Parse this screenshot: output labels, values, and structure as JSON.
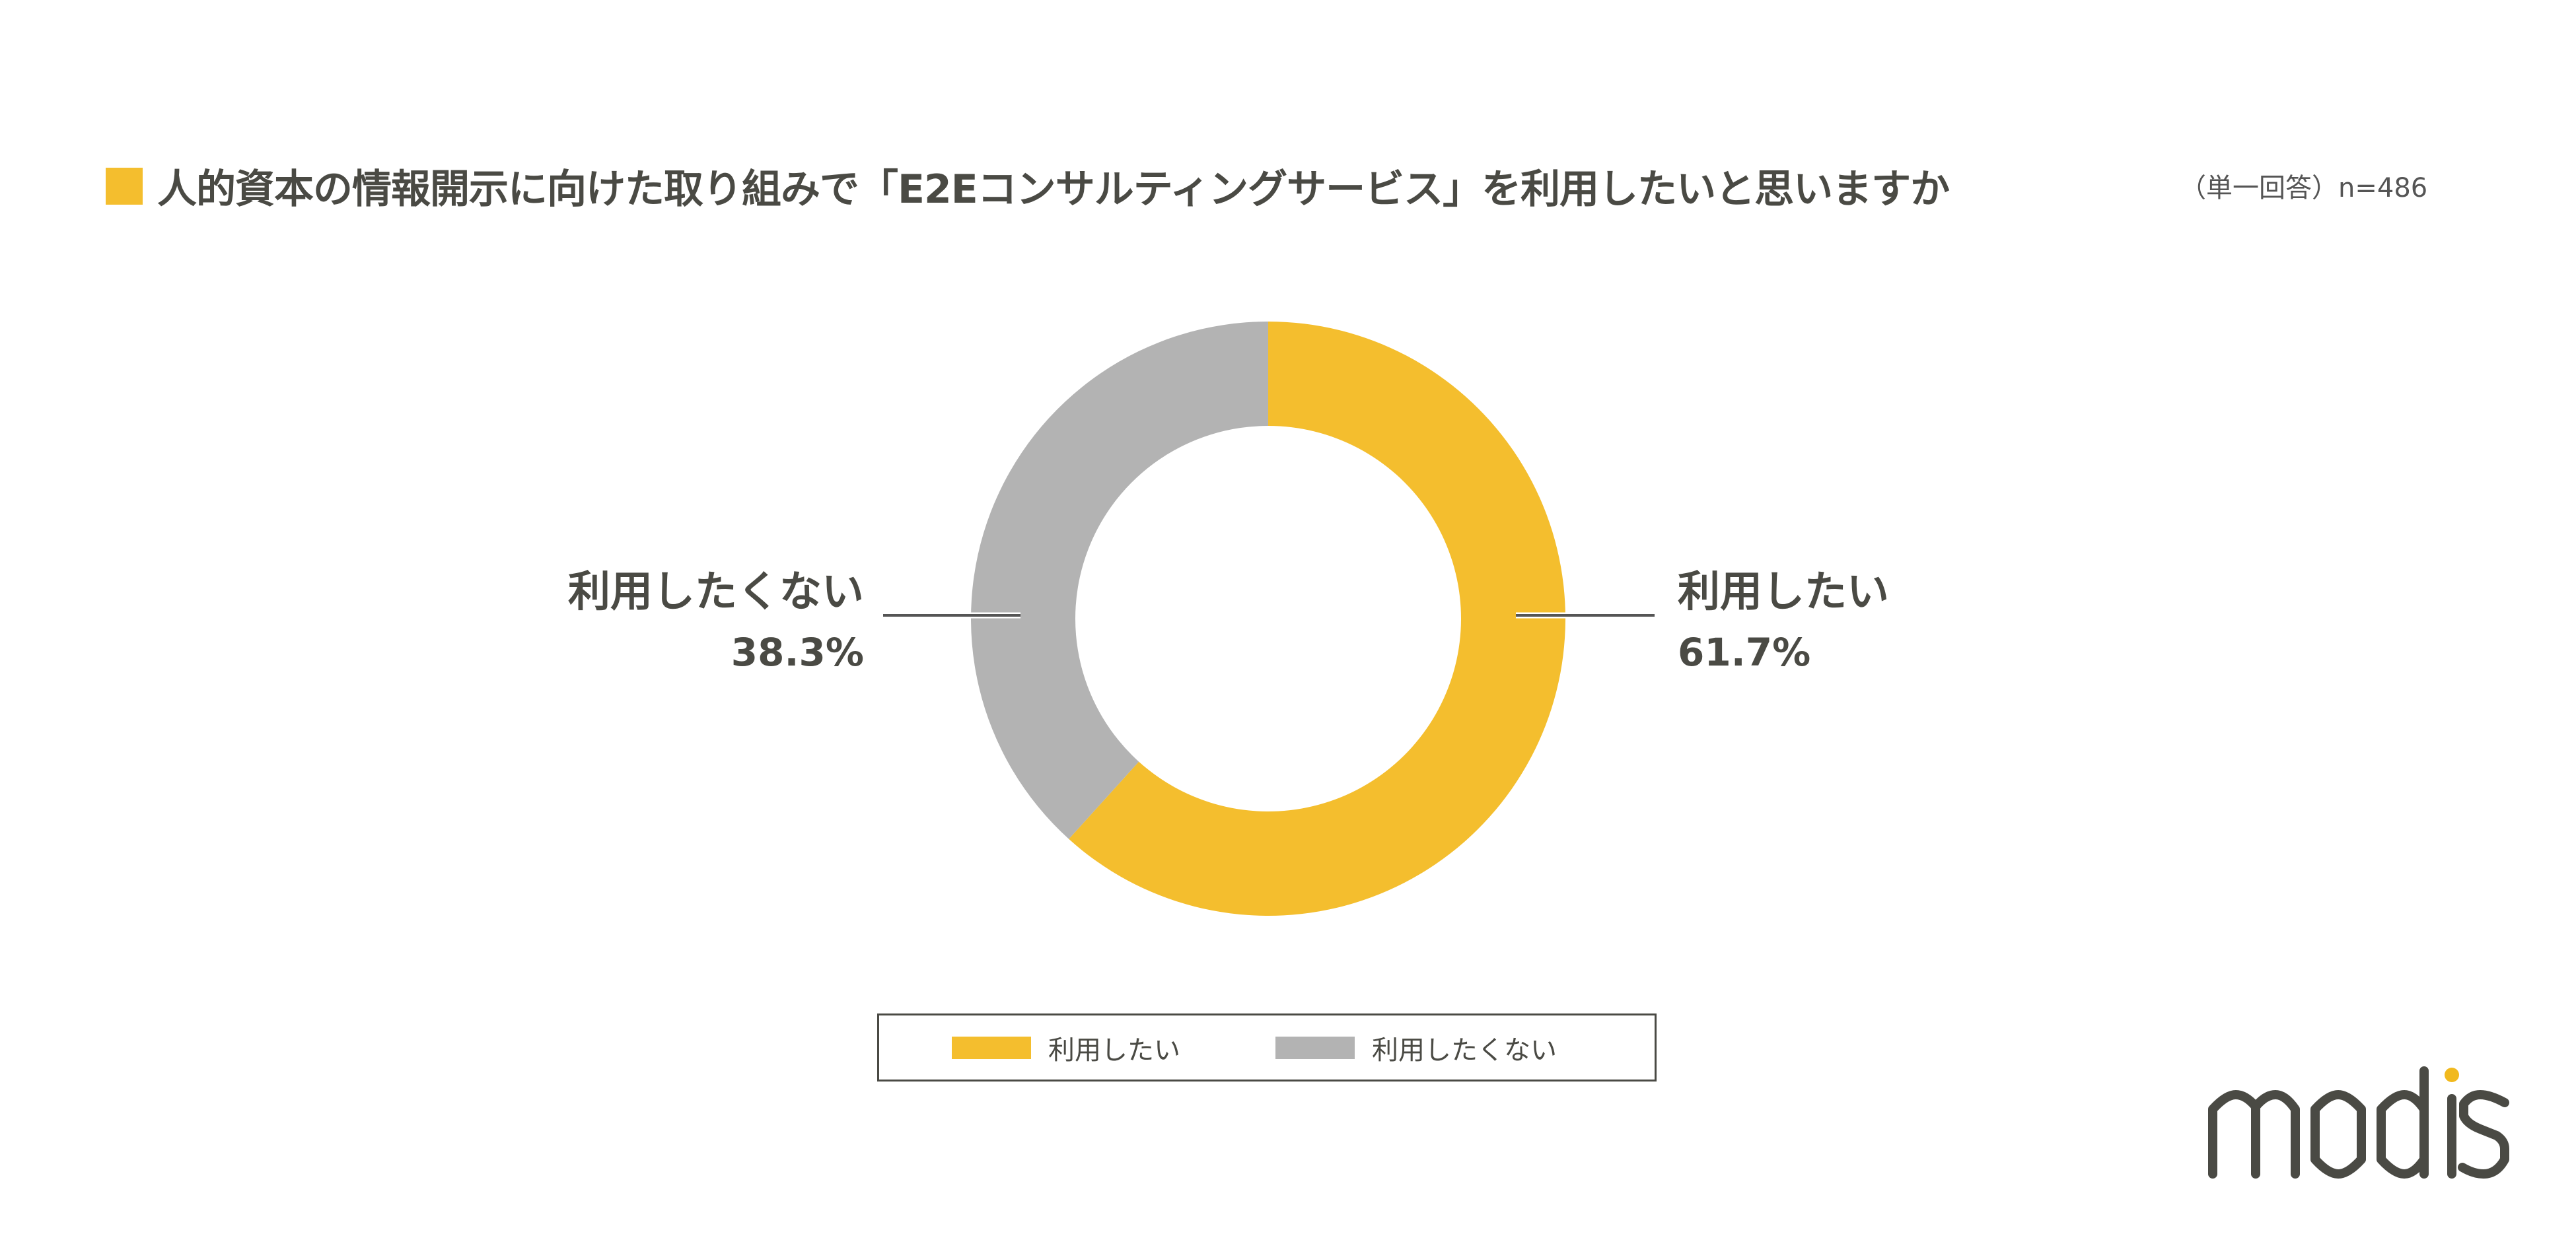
{
  "chart_data": {
    "type": "pie",
    "donut": true,
    "title": "人的資本の情報開示に向けた取り組みで「E2Eコンサルティングサービス」を利用したいと思いますか",
    "subtitle": "（単一回答）n=486",
    "categories": [
      "利用したい",
      "利用したくない"
    ],
    "values": [
      61.7,
      38.3
    ],
    "value_labels": [
      "61.7%",
      "38.3%"
    ],
    "colors": [
      "#F4BE2E",
      "#B3B3B3"
    ],
    "start_angle": "12 o'clock, clockwise",
    "legend": {
      "placement": "bottom",
      "entries": [
        "利用したい",
        "利用したくない"
      ]
    }
  },
  "accent_color": "#F4BE2E",
  "logo": {
    "text": "modis",
    "dot_color": "#F1B91E"
  }
}
